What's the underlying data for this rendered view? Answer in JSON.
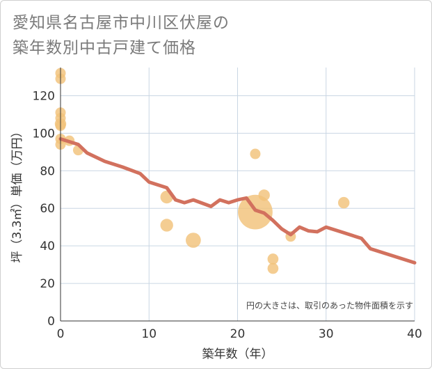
{
  "title_lines": [
    "愛知県名古屋市中川区伏屋の",
    "築年数別中古戸建て価格"
  ],
  "chart_data": {
    "type": "scatter+line",
    "xlabel": "築年数（年）",
    "ylabel": "坪（3.3㎡）単価（万円）",
    "xlim": [
      0,
      40
    ],
    "ylim": [
      0,
      135
    ],
    "x_ticks": [
      0,
      10,
      20,
      30,
      40
    ],
    "y_ticks": [
      0,
      20,
      40,
      60,
      80,
      100,
      120
    ],
    "grid": true,
    "note": "円の大きさは、取引のあった物件面積を示す",
    "bubble_color": "#f2c27a",
    "line_color": "#d2715e",
    "bubbles": [
      {
        "x": 0,
        "y": 132,
        "size": 1
      },
      {
        "x": 0,
        "y": 129,
        "size": 1
      },
      {
        "x": 0,
        "y": 111,
        "size": 1
      },
      {
        "x": 0,
        "y": 108,
        "size": 1
      },
      {
        "x": 0,
        "y": 105,
        "size": 1.2
      },
      {
        "x": 0,
        "y": 104,
        "size": 1
      },
      {
        "x": 0,
        "y": 97,
        "size": 1
      },
      {
        "x": 0,
        "y": 94,
        "size": 1
      },
      {
        "x": 1,
        "y": 96,
        "size": 1
      },
      {
        "x": 2,
        "y": 91,
        "size": 1
      },
      {
        "x": 12,
        "y": 66,
        "size": 1.5
      },
      {
        "x": 12,
        "y": 51,
        "size": 1.5
      },
      {
        "x": 15,
        "y": 43,
        "size": 2.1
      },
      {
        "x": 22,
        "y": 89,
        "size": 1
      },
      {
        "x": 22,
        "y": 58,
        "size": 11
      },
      {
        "x": 23,
        "y": 67,
        "size": 1.2
      },
      {
        "x": 24,
        "y": 33,
        "size": 1.1
      },
      {
        "x": 24,
        "y": 28,
        "size": 1.1
      },
      {
        "x": 26,
        "y": 45,
        "size": 1
      },
      {
        "x": 32,
        "y": 63,
        "size": 1.2
      }
    ],
    "trend_line": [
      {
        "x": 0,
        "y": 97
      },
      {
        "x": 1,
        "y": 95.5
      },
      {
        "x": 2,
        "y": 94
      },
      {
        "x": 3,
        "y": 89.5
      },
      {
        "x": 5,
        "y": 85
      },
      {
        "x": 7,
        "y": 82
      },
      {
        "x": 9,
        "y": 78.5
      },
      {
        "x": 10,
        "y": 74
      },
      {
        "x": 12,
        "y": 71
      },
      {
        "x": 13,
        "y": 64.5
      },
      {
        "x": 14,
        "y": 63
      },
      {
        "x": 15,
        "y": 64.5
      },
      {
        "x": 17,
        "y": 61
      },
      {
        "x": 18,
        "y": 64.5
      },
      {
        "x": 19,
        "y": 63
      },
      {
        "x": 20,
        "y": 64.5
      },
      {
        "x": 21,
        "y": 65.5
      },
      {
        "x": 22,
        "y": 59
      },
      {
        "x": 23,
        "y": 57.5
      },
      {
        "x": 24,
        "y": 53.5
      },
      {
        "x": 25,
        "y": 49
      },
      {
        "x": 26,
        "y": 46
      },
      {
        "x": 27,
        "y": 50
      },
      {
        "x": 28,
        "y": 48
      },
      {
        "x": 29,
        "y": 47.5
      },
      {
        "x": 30,
        "y": 50
      },
      {
        "x": 32,
        "y": 47
      },
      {
        "x": 34,
        "y": 44
      },
      {
        "x": 35,
        "y": 38.5
      },
      {
        "x": 40,
        "y": 31
      }
    ]
  }
}
